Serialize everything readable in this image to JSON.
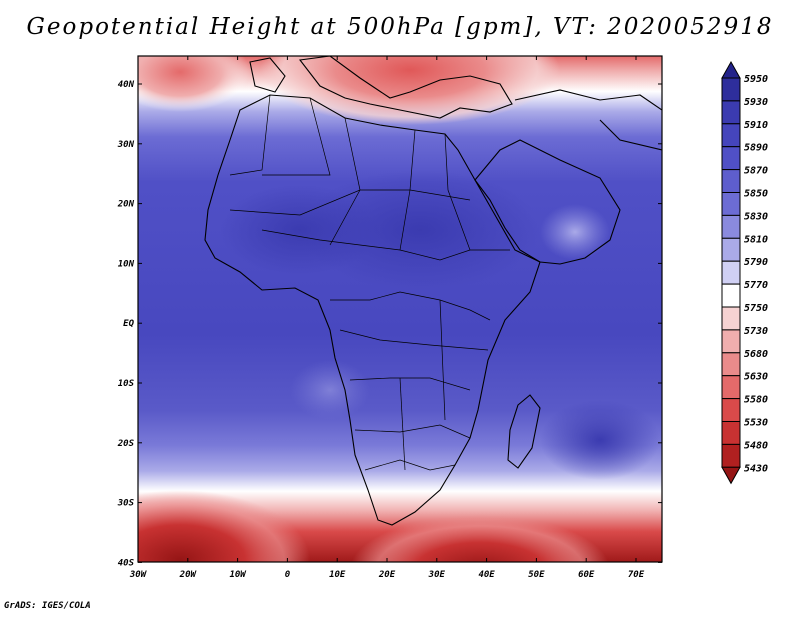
{
  "title": "Geopotential Height at 500hPa [gpm], VT: 2020052918",
  "credit": "GrADS: IGES/COLA",
  "map": {
    "variable": "Geopotential Height",
    "level": "500hPa",
    "units": "gpm",
    "valid_time": "2020052918",
    "lon_labels": [
      "30W",
      "20W",
      "10W",
      "0",
      "10E",
      "20E",
      "30E",
      "40E",
      "50E",
      "60E",
      "70E"
    ],
    "lat_labels": [
      "40N",
      "30N",
      "20N",
      "10N",
      "EQ",
      "10S",
      "20S",
      "30S",
      "40S"
    ],
    "lon_range": [
      -30,
      75
    ],
    "lat_range": [
      -40,
      45
    ]
  },
  "colorbar": {
    "levels": [
      "5950",
      "5930",
      "5910",
      "5890",
      "5870",
      "5850",
      "5830",
      "5810",
      "5790",
      "5770",
      "5750",
      "5730",
      "5680",
      "5630",
      "5580",
      "5530",
      "5480",
      "5430"
    ],
    "colors": [
      "#23238a",
      "#2e2e9c",
      "#3b3bb0",
      "#4545bc",
      "#5050c6",
      "#5e5ecd",
      "#6c6cd4",
      "#8a8ade",
      "#aaaae8",
      "#d0d0f4",
      "#ffffff",
      "#f6d2d2",
      "#f0aeae",
      "#ea8b8b",
      "#e46a6a",
      "#d94a4a",
      "#c83232",
      "#b02020",
      "#951515"
    ]
  },
  "colors": {
    "ocean_mid": "#5a5ac8",
    "land_mid": "#4a4ac0",
    "north_red": "#e46a6a",
    "south_red": "#b02020"
  }
}
